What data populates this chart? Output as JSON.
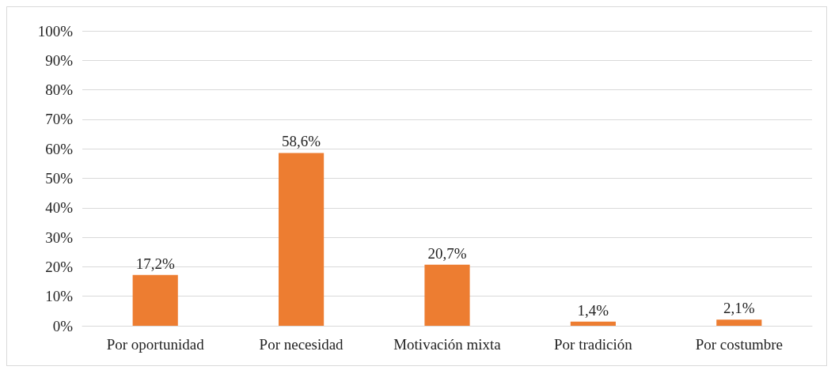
{
  "chart_data": {
    "type": "bar",
    "categories": [
      "Por oportunidad",
      "Por necesidad",
      "Motivación mixta",
      "Por tradición",
      "Por costumbre"
    ],
    "values": [
      17.2,
      58.6,
      20.7,
      1.4,
      2.1
    ],
    "value_labels": [
      "17,2%",
      "58,6%",
      "20,7%",
      "1,4%",
      "2,1%"
    ],
    "color": "#ed7d31",
    "ylim": [
      0,
      100
    ],
    "yticks": [
      {
        "value": 0,
        "label": "0%"
      },
      {
        "value": 10,
        "label": "10%"
      },
      {
        "value": 20,
        "label": "20%"
      },
      {
        "value": 30,
        "label": "30%"
      },
      {
        "value": 40,
        "label": "40%"
      },
      {
        "value": 50,
        "label": "50%"
      },
      {
        "value": 60,
        "label": "60%"
      },
      {
        "value": 70,
        "label": "70%"
      },
      {
        "value": 80,
        "label": "80%"
      },
      {
        "value": 90,
        "label": "90%"
      },
      {
        "value": 100,
        "label": "100%"
      }
    ],
    "grid": "y"
  }
}
